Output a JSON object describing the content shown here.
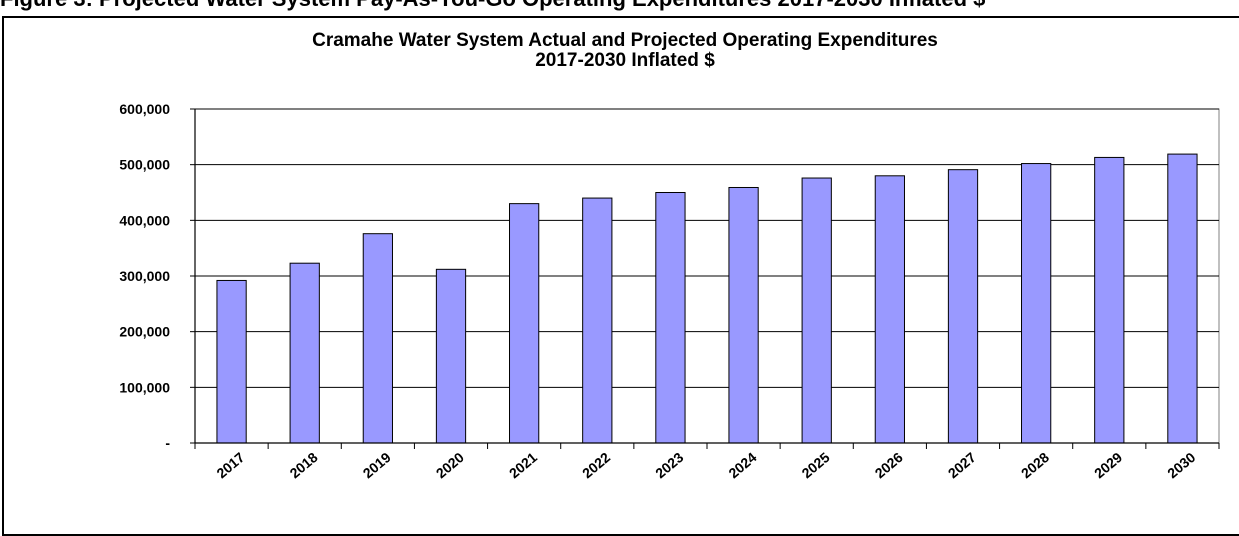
{
  "caption": "Figure 3: Projected Water System Pay-As-You-Go Operating Expenditures 2017-2030 Inflated $",
  "chart_data": {
    "type": "bar",
    "title": "Cramahe Water System Actual and Projected Operating Expenditures",
    "subtitle": "2017-2030 Inflated $",
    "xlabel": "",
    "ylabel": "",
    "categories": [
      "2017",
      "2018",
      "2019",
      "2020",
      "2021",
      "2022",
      "2023",
      "2024",
      "2025",
      "2026",
      "2027",
      "2028",
      "2029",
      "2030"
    ],
    "values": [
      292000,
      323000,
      376000,
      312000,
      430000,
      440000,
      450000,
      459000,
      476000,
      480000,
      491000,
      502000,
      513000,
      519000
    ],
    "ylim": [
      0,
      600000
    ],
    "yticks": [
      0,
      100000,
      200000,
      300000,
      400000,
      500000,
      600000
    ],
    "ytick_labels": [
      "-",
      "100,000",
      "200,000",
      "300,000",
      "400,000",
      "500,000",
      "600,000"
    ],
    "grid": true,
    "legend": "none",
    "colors": {
      "bar_fill": "#9999FF",
      "bar_stroke": "#000000",
      "gridline": "#000000",
      "plot_border": "#808080"
    }
  }
}
